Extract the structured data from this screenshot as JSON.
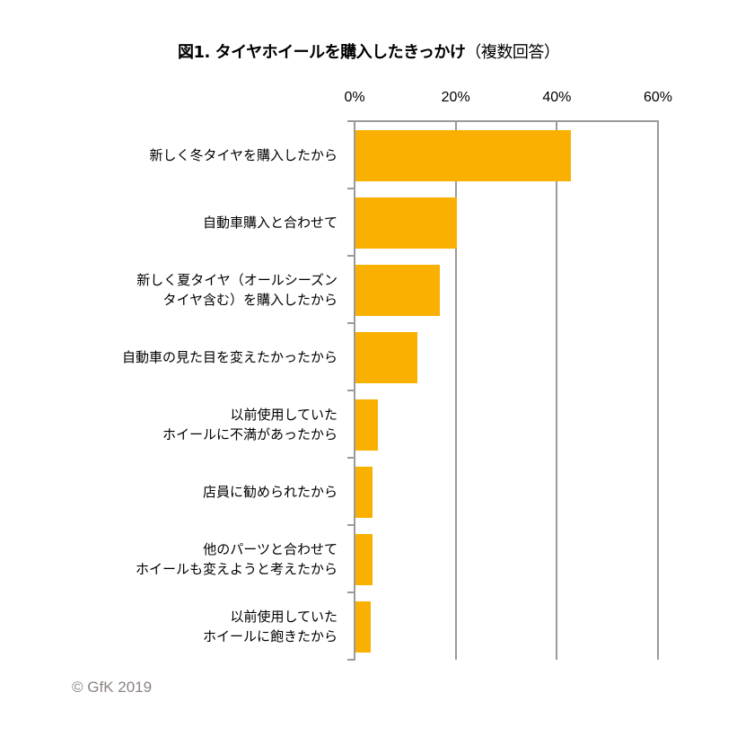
{
  "chart_data": {
    "type": "bar",
    "orientation": "horizontal",
    "title": "図1. タイヤホイールを購入したきっかけ（複数回答）",
    "title_main": "図1. タイヤホイールを購入したきっかけ",
    "title_suffix": "（複数回答）",
    "xlabel": "",
    "ylabel": "",
    "xlim": [
      0,
      60
    ],
    "x_ticks": [
      "0%",
      "20%",
      "40%",
      "60%"
    ],
    "grid": true,
    "legend": null,
    "color": "#f9b000",
    "categories": [
      "新しく冬タイヤを購入したから",
      "自動車購入と合わせて",
      "新しく夏タイヤ（オールシーズンタイヤ含む）を購入したから",
      "自動車の見た目を変えたかったから",
      "以前使用していたホイールに不満があったから",
      "店員に勧められたから",
      "他のパーツと合わせてホイールも変えようと考えたから",
      "以前使用していたホイールに飽きたから"
    ],
    "values": [
      42.7,
      20.2,
      16.9,
      12.4,
      4.6,
      3.6,
      3.6,
      3.2
    ],
    "unit": "%"
  },
  "labels": [
    {
      "line1": "新しく冬タイヤを購入したから",
      "line2": ""
    },
    {
      "line1": "自動車購入と合わせて",
      "line2": ""
    },
    {
      "line1": "新しく夏タイヤ（オールシーズン",
      "line2": "タイヤ含む）を購入したから"
    },
    {
      "line1": "自動車の見た目を変えたかったから",
      "line2": ""
    },
    {
      "line1": "以前使用していた",
      "line2": "ホイールに不満があったから"
    },
    {
      "line1": "店員に勧められたから",
      "line2": ""
    },
    {
      "line1": "他のパーツと合わせて",
      "line2": "ホイールも変えようと考えたから"
    },
    {
      "line1": "以前使用していた",
      "line2": "ホイールに飽きたから"
    }
  ],
  "footer": "© GfK 2019"
}
